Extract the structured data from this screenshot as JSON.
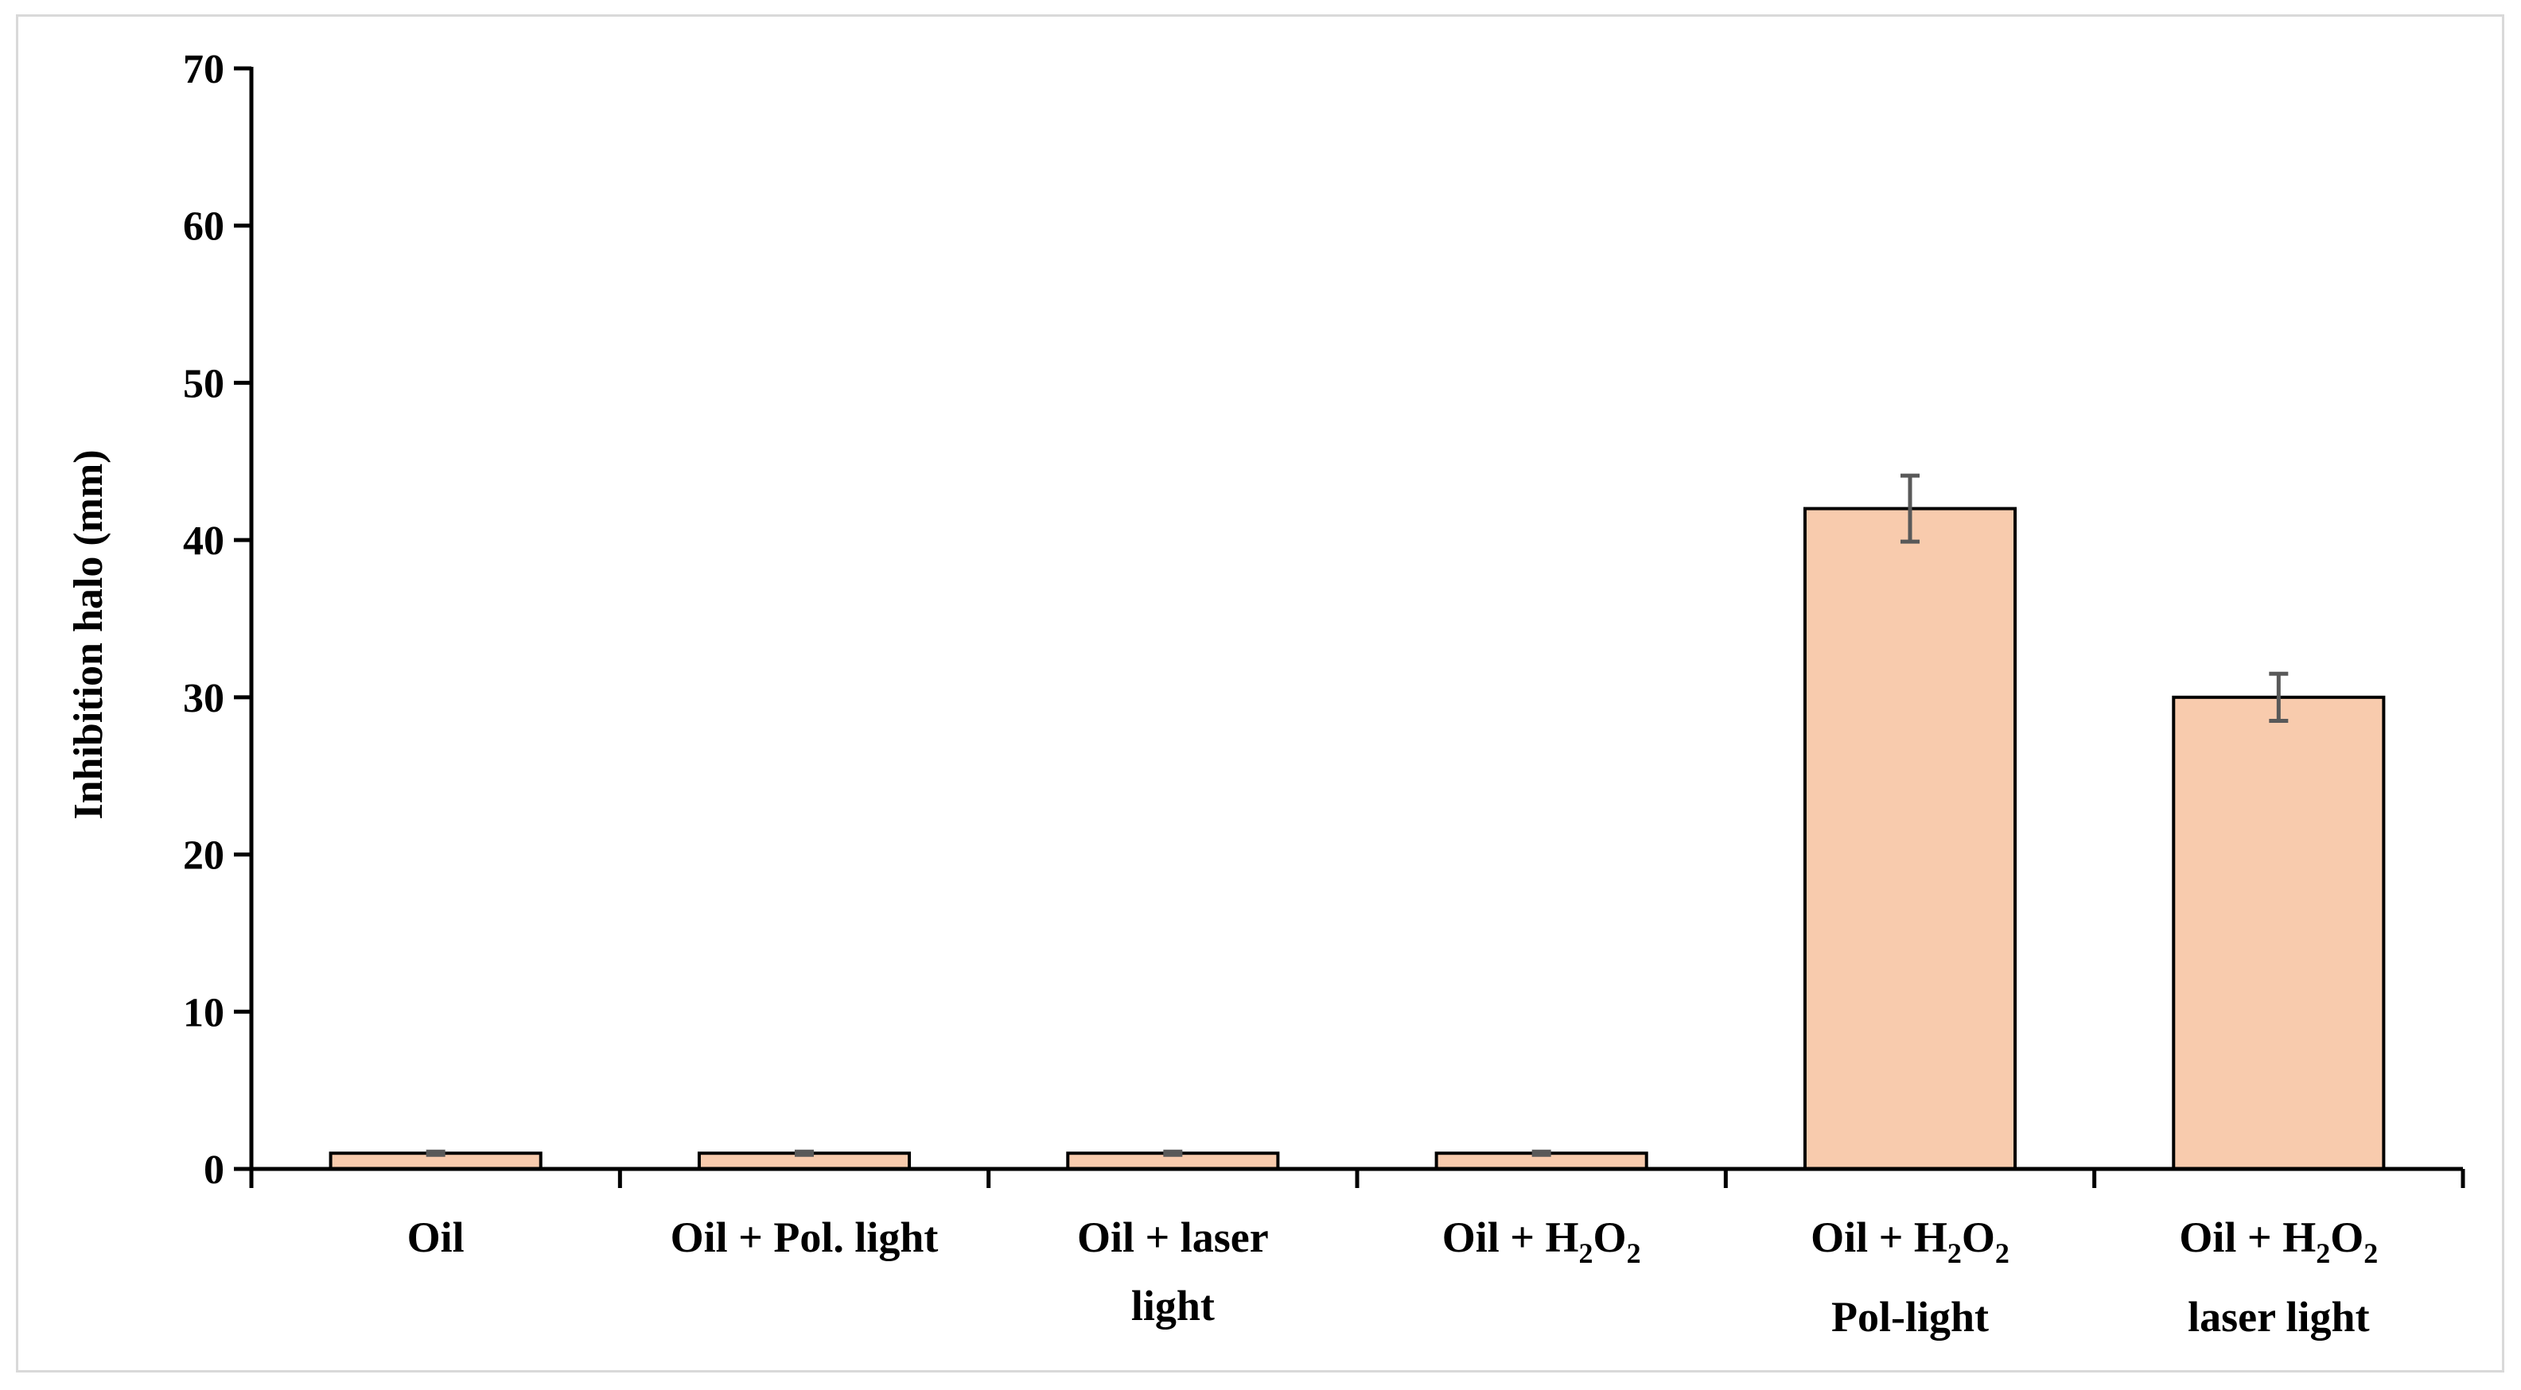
{
  "colors": {
    "bar_fill": "#f8cbad",
    "bar_stroke": "#000000",
    "error_bar": "#595959",
    "frame": "#d9d9d9"
  },
  "chart_data": {
    "type": "bar",
    "title": "",
    "ylabel": "Inhibition  halo (mm)",
    "xlabel": "",
    "ylim": [
      0,
      70
    ],
    "yticks": [
      0,
      10,
      20,
      30,
      40,
      50,
      60,
      70
    ],
    "grid": false,
    "legend": "none",
    "categories": [
      {
        "lines": [
          [
            {
              "t": "Oil"
            }
          ]
        ]
      },
      {
        "lines": [
          [
            {
              "t": "Oil + Pol. light"
            }
          ]
        ]
      },
      {
        "lines": [
          [
            {
              "t": "Oil + laser"
            }
          ],
          [
            {
              "t": "light"
            }
          ]
        ]
      },
      {
        "lines": [
          [
            {
              "t": "Oil    + H"
            },
            {
              "t": "2",
              "sub": true
            },
            {
              "t": "O"
            },
            {
              "t": "2",
              "sub": true
            }
          ]
        ]
      },
      {
        "lines": [
          [
            {
              "t": "Oil    + H"
            },
            {
              "t": "2",
              "sub": true
            },
            {
              "t": "O"
            },
            {
              "t": "2",
              "sub": true
            }
          ],
          [
            {
              "t": "Pol-light"
            }
          ]
        ]
      },
      {
        "lines": [
          [
            {
              "t": "Oil   + H"
            },
            {
              "t": "2",
              "sub": true
            },
            {
              "t": "O"
            },
            {
              "t": "2",
              "sub": true
            }
          ],
          [
            {
              "t": "laser light"
            }
          ]
        ]
      }
    ],
    "series": [
      {
        "values": [
          1,
          1,
          1,
          1,
          42,
          30
        ],
        "errors": [
          0.1,
          0.1,
          0.1,
          0.1,
          2.1,
          1.5
        ]
      }
    ]
  }
}
